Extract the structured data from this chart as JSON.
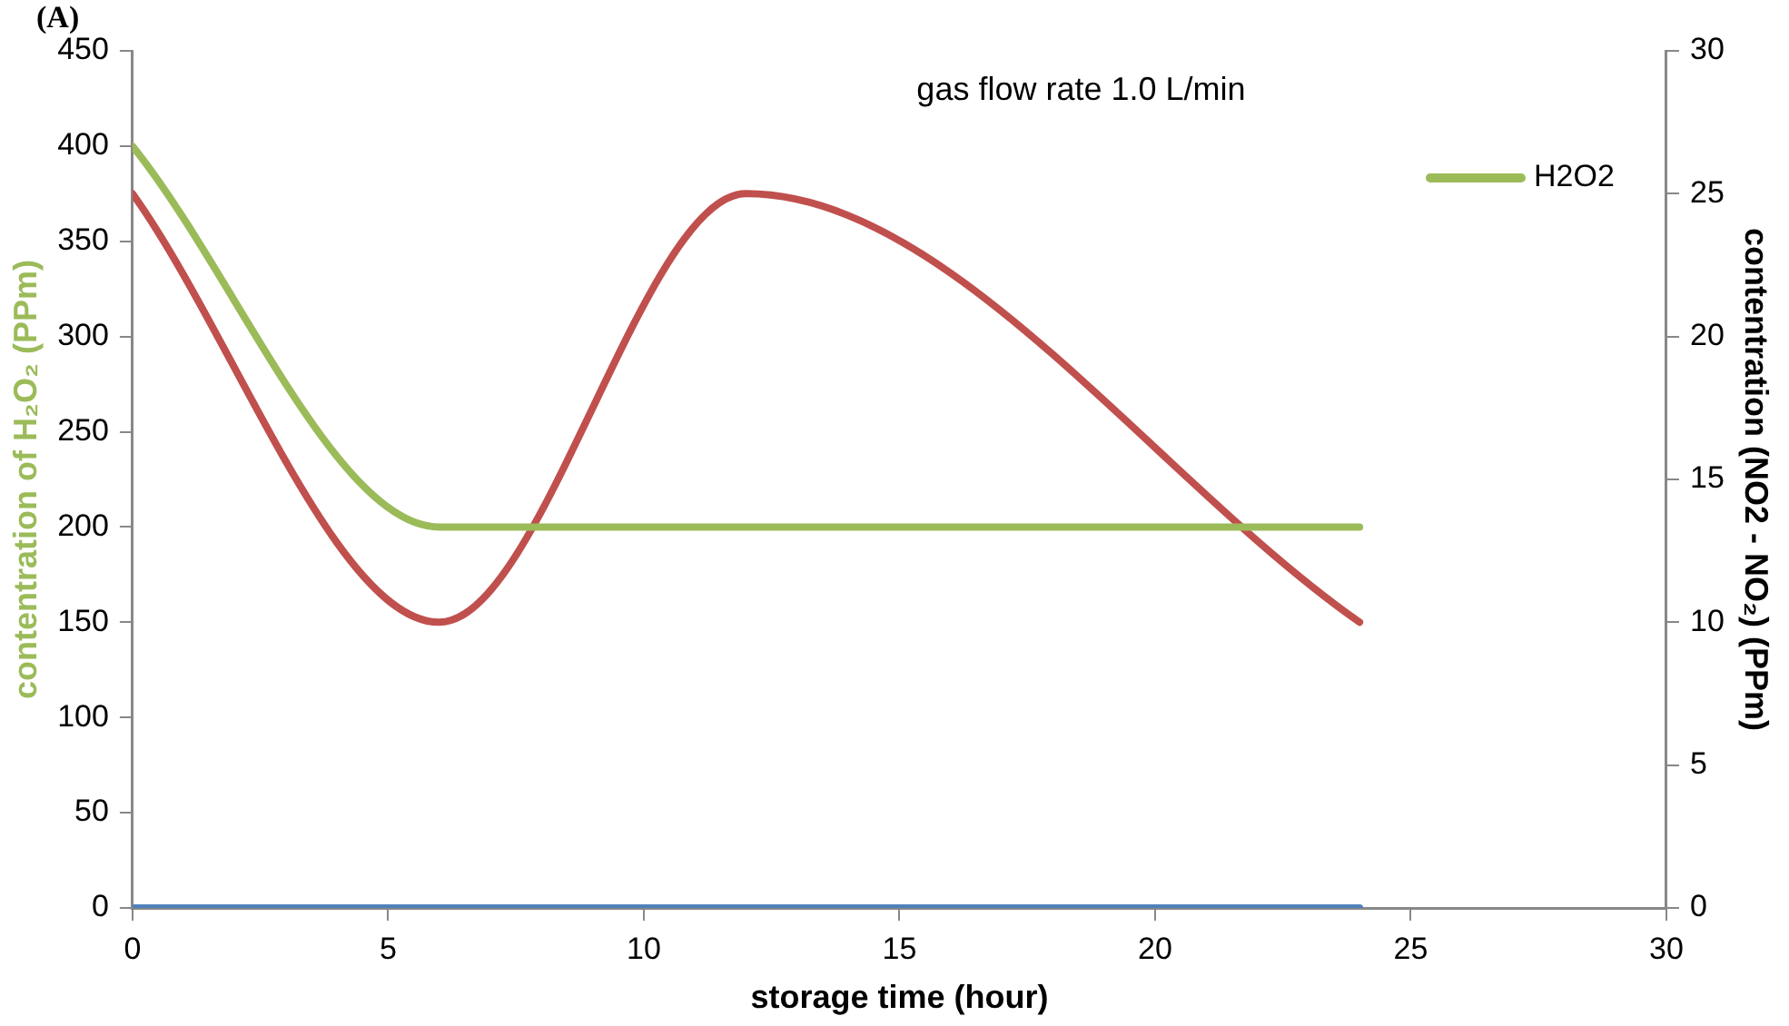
{
  "chart_data": {
    "type": "line",
    "xlabel": "storage time (hour)",
    "ylabel": "contentration of H₂O₂ (PPm)",
    "y2label": "contentration (NO2 - NO₂) (PPm)",
    "annotations": [
      "gas flow rate 1.0 L/min",
      "(A)"
    ],
    "series": [
      {
        "name": "H2O2",
        "color": "#9bbb59",
        "x": [
          0,
          6,
          12,
          24
        ],
        "values": [
          400,
          200,
          200,
          200
        ]
      },
      {
        "color": "#c0504d",
        "axis": "y2",
        "x": [
          0,
          6,
          12,
          24
        ],
        "values": [
          25,
          10,
          25,
          10
        ]
      },
      {
        "color": "#4f81bd",
        "axis": "y2",
        "x": [
          0,
          6,
          12,
          24
        ],
        "values": [
          0,
          0,
          0,
          0
        ]
      }
    ],
    "xlim": [
      0,
      30
    ],
    "xticks": [
      0,
      5,
      10,
      15,
      20,
      25,
      30
    ],
    "ylim": [
      0,
      450
    ],
    "yticks": [
      0,
      50,
      100,
      150,
      200,
      250,
      300,
      350,
      400,
      450
    ],
    "y2lim": [
      0,
      30
    ],
    "y2ticks": [
      0,
      5,
      10,
      15,
      20,
      25,
      30
    ],
    "grid": false,
    "legend": "top right",
    "marker": "none",
    "line_style": "solid"
  }
}
